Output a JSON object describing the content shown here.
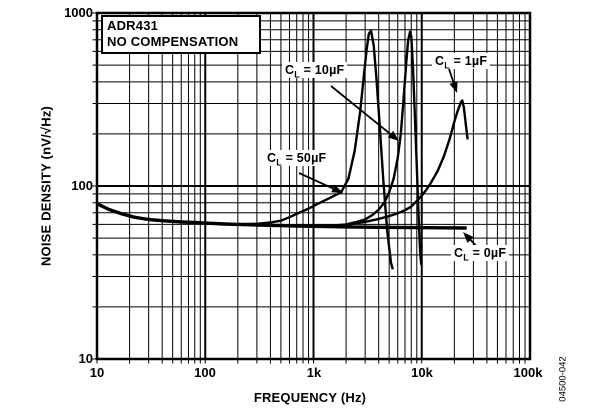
{
  "chart_data": {
    "type": "line",
    "title_box_line1": "ADR431",
    "title_box_line2": "NO COMPENSATION",
    "xlabel": "FREQUENCY (Hz)",
    "ylabel": "NOISE DENSITY (nV/√Hz)",
    "x_scale": "log",
    "y_scale": "log",
    "xlim": [
      10,
      100000
    ],
    "ylim": [
      10,
      1000
    ],
    "x_tick_labels": [
      "10",
      "100",
      "1k",
      "10k",
      "100k"
    ],
    "y_tick_labels": [
      "1000",
      "100",
      "10"
    ],
    "grid": "log minor + major, black on white",
    "line_color": "#000000",
    "figure_number": "04500-042",
    "series": [
      {
        "name": "CL = 50µF",
        "points": [
          [
            10,
            79
          ],
          [
            13,
            73
          ],
          [
            17,
            69
          ],
          [
            22,
            66
          ],
          [
            30,
            64
          ],
          [
            40,
            63
          ],
          [
            60,
            62
          ],
          [
            80,
            61.5
          ],
          [
            100,
            61
          ],
          [
            150,
            60.4
          ],
          [
            200,
            60.2
          ],
          [
            300,
            60.5
          ],
          [
            400,
            61.5
          ],
          [
            500,
            63
          ],
          [
            600,
            66
          ],
          [
            700,
            69
          ],
          [
            900,
            74
          ],
          [
            1100,
            79
          ],
          [
            1400,
            85
          ],
          [
            1800,
            92
          ],
          [
            2100,
            110
          ],
          [
            2400,
            160
          ],
          [
            2700,
            270
          ],
          [
            2900,
            420
          ],
          [
            3100,
            620
          ],
          [
            3250,
            760
          ],
          [
            3400,
            790
          ],
          [
            3600,
            650
          ],
          [
            3800,
            430
          ],
          [
            4100,
            220
          ],
          [
            4400,
            110
          ],
          [
            4800,
            55
          ],
          [
            5200,
            36
          ],
          [
            5400,
            33
          ]
        ]
      },
      {
        "name": "CL = 10µF",
        "points": [
          [
            10,
            79
          ],
          [
            13,
            73
          ],
          [
            17,
            69
          ],
          [
            22,
            66
          ],
          [
            30,
            64
          ],
          [
            40,
            63
          ],
          [
            60,
            62
          ],
          [
            80,
            61.5
          ],
          [
            100,
            61
          ],
          [
            150,
            60.3
          ],
          [
            200,
            60
          ],
          [
            300,
            59.5
          ],
          [
            500,
            59
          ],
          [
            700,
            58.8
          ],
          [
            1000,
            58.6
          ],
          [
            1500,
            59
          ],
          [
            2000,
            60
          ],
          [
            2500,
            62
          ],
          [
            3000,
            64
          ],
          [
            3500,
            68
          ],
          [
            4000,
            73
          ],
          [
            4500,
            80
          ],
          [
            5000,
            92
          ],
          [
            5500,
            110
          ],
          [
            6000,
            145
          ],
          [
            6400,
            200
          ],
          [
            6800,
            320
          ],
          [
            7200,
            520
          ],
          [
            7500,
            700
          ],
          [
            7800,
            780
          ],
          [
            8000,
            730
          ],
          [
            8300,
            480
          ],
          [
            8600,
            270
          ],
          [
            9000,
            130
          ],
          [
            9400,
            62
          ],
          [
            9700,
            40
          ],
          [
            9900,
            35
          ]
        ]
      },
      {
        "name": "CL = 1µF",
        "points": [
          [
            10,
            79
          ],
          [
            13,
            73
          ],
          [
            17,
            69
          ],
          [
            22,
            66
          ],
          [
            30,
            64
          ],
          [
            40,
            63
          ],
          [
            60,
            62
          ],
          [
            80,
            61.5
          ],
          [
            100,
            61
          ],
          [
            150,
            60.3
          ],
          [
            200,
            60
          ],
          [
            300,
            59.5
          ],
          [
            500,
            59
          ],
          [
            700,
            58.8
          ],
          [
            1000,
            58.7
          ],
          [
            1500,
            59
          ],
          [
            2000,
            59.5
          ],
          [
            3000,
            62
          ],
          [
            4000,
            64.5
          ],
          [
            5000,
            67
          ],
          [
            6000,
            69.5
          ],
          [
            7000,
            72.5
          ],
          [
            8000,
            76
          ],
          [
            9000,
            82
          ],
          [
            10000,
            88
          ],
          [
            11000,
            95
          ],
          [
            12000,
            103
          ],
          [
            14000,
            122
          ],
          [
            16000,
            148
          ],
          [
            18000,
            185
          ],
          [
            20000,
            235
          ],
          [
            21500,
            272
          ],
          [
            23000,
            305
          ],
          [
            23700,
            312
          ],
          [
            24500,
            283
          ],
          [
            25500,
            228
          ],
          [
            26500,
            186
          ]
        ]
      },
      {
        "name": "CL = 0µF",
        "points": [
          [
            10,
            79
          ],
          [
            13,
            73
          ],
          [
            17,
            69
          ],
          [
            22,
            66
          ],
          [
            30,
            64
          ],
          [
            40,
            63
          ],
          [
            60,
            62
          ],
          [
            80,
            61.5
          ],
          [
            100,
            61
          ],
          [
            150,
            60.3
          ],
          [
            200,
            60
          ],
          [
            300,
            59.5
          ],
          [
            500,
            59
          ],
          [
            700,
            58.7
          ],
          [
            1000,
            58.5
          ],
          [
            2000,
            58
          ],
          [
            4000,
            57.7
          ],
          [
            8000,
            57.5
          ],
          [
            15000,
            57.3
          ],
          [
            26000,
            57.2
          ]
        ]
      }
    ],
    "annotations": [
      {
        "id": "10uF",
        "prefix": "C",
        "sub": "L",
        "suffix": " = 10µF"
      },
      {
        "id": "1uF",
        "prefix": "C",
        "sub": "L",
        "suffix": " = 1µF"
      },
      {
        "id": "50uF",
        "prefix": "C",
        "sub": "L",
        "suffix": " = 50µF"
      },
      {
        "id": "0uF",
        "prefix": "C",
        "sub": "L",
        "suffix": " = 0µF"
      }
    ]
  }
}
